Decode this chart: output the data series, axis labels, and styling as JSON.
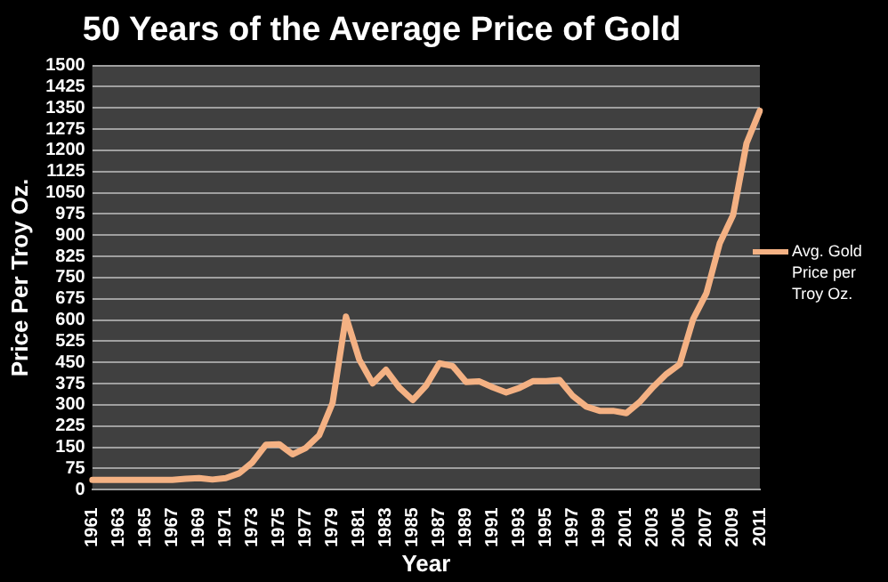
{
  "chart_data": {
    "type": "line",
    "title": "50 Years of the Average Price of Gold",
    "xlabel": "Year",
    "ylabel": "Price Per Troy Oz.",
    "categories": [
      "1961",
      null,
      "1963",
      null,
      "1965",
      null,
      "1967",
      null,
      "1969",
      null,
      "1971",
      null,
      "1973",
      null,
      "1975",
      null,
      "1977",
      null,
      "1979",
      null,
      "1981",
      null,
      "1983",
      null,
      "1985",
      null,
      "1987",
      null,
      "1989",
      null,
      "1991",
      null,
      "1993",
      null,
      "1995",
      null,
      "1997",
      null,
      "1999",
      null,
      "2001",
      null,
      "2003",
      null,
      "2005",
      null,
      "2007",
      null,
      "2009",
      null,
      "2011"
    ],
    "series": [
      {
        "name": "Avg. Gold Price per Troy Oz.",
        "color": "#f4b183",
        "values": [
          35,
          35,
          35,
          35,
          35,
          35,
          35,
          39,
          41,
          36,
          41,
          58,
          97,
          159,
          161,
          125,
          148,
          193,
          307,
          612,
          460,
          376,
          424,
          361,
          317,
          368,
          447,
          437,
          381,
          383,
          362,
          344,
          360,
          384,
          384,
          388,
          331,
          294,
          279,
          279,
          271,
          310,
          363,
          409,
          444,
          603,
          695,
          872,
          972,
          1225,
          1340
        ]
      }
    ],
    "ylim": [
      0,
      1500
    ],
    "yticks": [
      0,
      75,
      150,
      225,
      300,
      375,
      450,
      525,
      600,
      675,
      750,
      825,
      900,
      975,
      1050,
      1125,
      1200,
      1275,
      1350,
      1425,
      1500
    ],
    "grid": "y",
    "legend": "right",
    "marker": "none",
    "line_style": "solid"
  }
}
